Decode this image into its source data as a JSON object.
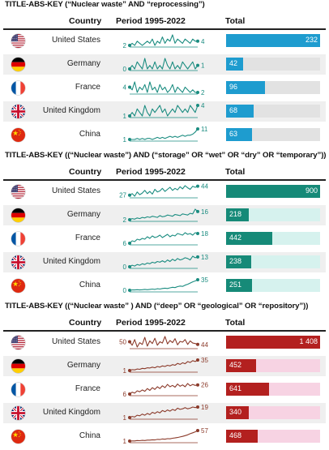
{
  "panels": [
    {
      "title": "TITLE-ABS-KEY (“Nuclear waste” AND “reprocessing”)",
      "headers": {
        "country": "Country",
        "period": "Period 1995-2022",
        "total": "Total"
      },
      "color": "#1a8c80",
      "bar_color": "#1e9ccf",
      "track_color": "#e2e2e2",
      "rows": [
        {
          "country": "United States",
          "flag": "us",
          "start": 2,
          "end": 4,
          "total": 232,
          "total_label": "232",
          "series": [
            2,
            3,
            2,
            4,
            3,
            2,
            3,
            4,
            3,
            5,
            2,
            4,
            3,
            6,
            3,
            5,
            4,
            7,
            3,
            5,
            4,
            3,
            5,
            4,
            3,
            5,
            4,
            4
          ]
        },
        {
          "country": "Germany",
          "flag": "de",
          "start": 0,
          "end": 1,
          "total": 42,
          "total_label": "42",
          "series": [
            0,
            1,
            0,
            2,
            1,
            0,
            3,
            0,
            1,
            0,
            2,
            0,
            1,
            0,
            3,
            1,
            0,
            2,
            0,
            1,
            0,
            2,
            1,
            0,
            1,
            2,
            0,
            1
          ]
        },
        {
          "country": "France",
          "flag": "fr",
          "start": 4,
          "end": 2,
          "total": 96,
          "total_label": "96",
          "series": [
            4,
            3,
            6,
            2,
            4,
            3,
            5,
            2,
            6,
            3,
            4,
            2,
            5,
            3,
            4,
            2,
            3,
            5,
            2,
            4,
            3,
            2,
            4,
            3,
            2,
            3,
            2,
            2
          ]
        },
        {
          "country": "United Kingdom",
          "flag": "gb",
          "start": 1,
          "end": 4,
          "total": 68,
          "total_label": "68",
          "series": [
            1,
            2,
            1,
            3,
            2,
            1,
            4,
            2,
            1,
            3,
            2,
            3,
            4,
            2,
            3,
            1,
            2,
            3,
            2,
            4,
            3,
            2,
            3,
            2,
            4,
            3,
            2,
            4
          ]
        },
        {
          "country": "China",
          "flag": "cn",
          "start": 1,
          "end": 11,
          "total": 63,
          "total_label": "63",
          "series": [
            1,
            1,
            1,
            2,
            1,
            2,
            1,
            2,
            2,
            1,
            2,
            3,
            2,
            3,
            2,
            3,
            4,
            3,
            4,
            3,
            4,
            5,
            4,
            5,
            5,
            6,
            8,
            11
          ]
        }
      ]
    },
    {
      "title": "TITLE-ABS-KEY ((“Nuclear waste”) AND (“storage” OR “wet” OR “dry” OR “temporary”))",
      "headers": {
        "country": "Country",
        "period": "Period 1995-2022",
        "total": "Total"
      },
      "color": "#1a8c80",
      "bar_color": "#168a78",
      "track_color": "#d6f2ee",
      "rows": [
        {
          "country": "United States",
          "flag": "us",
          "start": 27,
          "end": 44,
          "total": 900,
          "total_label": "900",
          "series": [
            27,
            30,
            25,
            33,
            28,
            31,
            36,
            30,
            34,
            29,
            38,
            33,
            35,
            40,
            34,
            38,
            42,
            36,
            40,
            37,
            43,
            39,
            45,
            41,
            38,
            44,
            42,
            44
          ]
        },
        {
          "country": "Germany",
          "flag": "de",
          "start": 2,
          "end": 16,
          "total": 218,
          "total_label": "218",
          "series": [
            2,
            4,
            3,
            5,
            4,
            6,
            5,
            7,
            6,
            8,
            7,
            6,
            9,
            7,
            8,
            10,
            9,
            8,
            11,
            10,
            9,
            12,
            11,
            10,
            13,
            12,
            20,
            16
          ]
        },
        {
          "country": "France",
          "flag": "fr",
          "start": 6,
          "end": 18,
          "total": 442,
          "total_label": "442",
          "series": [
            6,
            9,
            8,
            11,
            10,
            12,
            11,
            14,
            12,
            15,
            13,
            14,
            16,
            13,
            15,
            17,
            14,
            16,
            15,
            18,
            17,
            16,
            19,
            17,
            18,
            16,
            19,
            18
          ]
        },
        {
          "country": "United Kingdom",
          "flag": "gb",
          "start": 0,
          "end": 13,
          "total": 238,
          "total_label": "238",
          "series": [
            0,
            2,
            1,
            3,
            2,
            4,
            3,
            5,
            4,
            6,
            5,
            7,
            6,
            8,
            6,
            9,
            7,
            10,
            8,
            11,
            9,
            10,
            12,
            11,
            9,
            14,
            12,
            13
          ]
        },
        {
          "country": "China",
          "flag": "cn",
          "start": 0,
          "end": 35,
          "total": 251,
          "total_label": "251",
          "series": [
            0,
            1,
            1,
            2,
            1,
            2,
            3,
            2,
            3,
            4,
            3,
            5,
            4,
            6,
            7,
            6,
            8,
            10,
            9,
            12,
            14,
            13,
            17,
            20,
            24,
            28,
            31,
            35
          ]
        }
      ]
    },
    {
      "title": "TITLE-ABS-KEY ((“Nuclear waste” ) AND (“deep” OR “geological” OR “repository”))",
      "headers": {
        "country": "Country",
        "period": "Period 1995-2022",
        "total": "Total"
      },
      "color": "#8b3a2a",
      "bar_color": "#b3201f",
      "track_color": "#f7d3e3",
      "rows": [
        {
          "country": "United States",
          "flag": "us",
          "start": 50,
          "end": 44,
          "total": 1408,
          "total_label": "1 408",
          "series": [
            50,
            42,
            55,
            38,
            48,
            44,
            60,
            40,
            52,
            46,
            58,
            42,
            50,
            47,
            62,
            45,
            53,
            48,
            57,
            43,
            51,
            49,
            55,
            44,
            52,
            47,
            46,
            44
          ]
        },
        {
          "country": "Germany",
          "flag": "de",
          "start": 1,
          "end": 35,
          "total": 452,
          "total_label": "452",
          "series": [
            1,
            4,
            3,
            6,
            5,
            8,
            7,
            10,
            9,
            12,
            10,
            14,
            12,
            16,
            14,
            18,
            16,
            20,
            18,
            24,
            21,
            26,
            23,
            30,
            27,
            33,
            30,
            35
          ]
        },
        {
          "country": "France",
          "flag": "fr",
          "start": 6,
          "end": 26,
          "total": 641,
          "total_label": "641",
          "series": [
            6,
            10,
            8,
            13,
            11,
            15,
            12,
            18,
            14,
            20,
            16,
            22,
            18,
            24,
            20,
            27,
            22,
            25,
            21,
            28,
            23,
            26,
            22,
            29,
            24,
            27,
            25,
            26
          ]
        },
        {
          "country": "United Kingdom",
          "flag": "gb",
          "start": 1,
          "end": 19,
          "total": 340,
          "total_label": "340",
          "series": [
            1,
            3,
            2,
            5,
            4,
            7,
            5,
            8,
            6,
            10,
            8,
            11,
            9,
            13,
            11,
            14,
            12,
            15,
            13,
            17,
            15,
            16,
            18,
            16,
            17,
            19,
            18,
            19
          ]
        },
        {
          "country": "China",
          "flag": "cn",
          "start": 1,
          "end": 57,
          "total": 468,
          "total_label": "468",
          "series": [
            1,
            2,
            2,
            4,
            3,
            5,
            4,
            6,
            6,
            8,
            7,
            10,
            9,
            12,
            11,
            14,
            13,
            16,
            18,
            20,
            23,
            26,
            30,
            34,
            40,
            45,
            50,
            57
          ]
        }
      ]
    }
  ],
  "chart_data": [
    {
      "type": "bar",
      "title": "TITLE-ABS-KEY (“Nuclear waste” AND “reprocessing”)",
      "categories": [
        "United States",
        "Germany",
        "France",
        "United Kingdom",
        "China"
      ],
      "values": [
        232,
        42,
        96,
        68,
        63
      ],
      "xlabel": "Country",
      "ylabel": "Total",
      "sparkline_label": "Period 1995-2022",
      "sparkline_endpoints": {
        "United States": [
          2,
          4
        ],
        "Germany": [
          0,
          1
        ],
        "France": [
          4,
          2
        ],
        "United Kingdom": [
          1,
          4
        ],
        "China": [
          1,
          11
        ]
      }
    },
    {
      "type": "bar",
      "title": "TITLE-ABS-KEY ((“Nuclear waste”) AND (“storage” OR “wet” OR “dry” OR “temporary”))",
      "categories": [
        "United States",
        "Germany",
        "France",
        "United Kingdom",
        "China"
      ],
      "values": [
        900,
        218,
        442,
        238,
        251
      ],
      "xlabel": "Country",
      "ylabel": "Total",
      "sparkline_label": "Period 1995-2022",
      "sparkline_endpoints": {
        "United States": [
          27,
          44
        ],
        "Germany": [
          2,
          16
        ],
        "France": [
          6,
          18
        ],
        "United Kingdom": [
          0,
          13
        ],
        "China": [
          0,
          35
        ]
      }
    },
    {
      "type": "bar",
      "title": "TITLE-ABS-KEY ((“Nuclear waste” ) AND (“deep” OR “geological” OR “repository”))",
      "categories": [
        "United States",
        "Germany",
        "France",
        "United Kingdom",
        "China"
      ],
      "values": [
        1408,
        452,
        641,
        340,
        468
      ],
      "xlabel": "Country",
      "ylabel": "Total",
      "sparkline_label": "Period 1995-2022",
      "sparkline_endpoints": {
        "United States": [
          50,
          44
        ],
        "Germany": [
          1,
          35
        ],
        "France": [
          6,
          26
        ],
        "United Kingdom": [
          1,
          19
        ],
        "China": [
          1,
          57
        ]
      }
    }
  ]
}
